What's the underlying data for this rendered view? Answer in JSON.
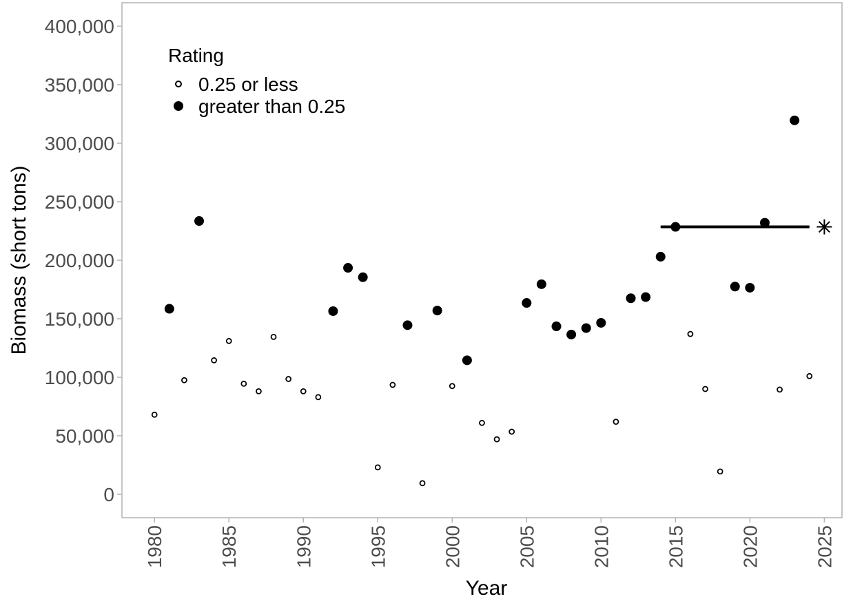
{
  "chart_data": {
    "type": "scatter",
    "xlabel": "Year",
    "ylabel": "Biomass (short tons)",
    "xlim": [
      1978,
      2026
    ],
    "ylim": [
      -20000,
      420000
    ],
    "x_ticks": [
      1980,
      1985,
      1990,
      1995,
      2000,
      2005,
      2010,
      2015,
      2020,
      2025
    ],
    "x_tick_labels": [
      "1980",
      "1985",
      "1990",
      "1995",
      "2000",
      "2005",
      "2010",
      "2015",
      "2020",
      "2025"
    ],
    "y_ticks": [
      0,
      50000,
      100000,
      150000,
      200000,
      250000,
      300000,
      350000,
      400000
    ],
    "y_tick_labels": [
      "0",
      "50,000",
      "100,000",
      "150,000",
      "200,000",
      "250,000",
      "300,000",
      "350,000",
      "400,000"
    ],
    "grid": false,
    "legend": {
      "title": "Rating",
      "placement": "top-left",
      "entries": [
        "0.25 or less",
        "greater than 0.25"
      ]
    },
    "series": [
      {
        "name": "0.25 or less",
        "marker": "hollow-circle-small",
        "x": [
          1980,
          1982,
          1984,
          1985,
          1986,
          1987,
          1988,
          1989,
          1990,
          1991,
          1995,
          1996,
          1998,
          2000,
          2002,
          2003,
          2004,
          2011,
          2016,
          2017,
          2018,
          2022,
          2024
        ],
        "y": [
          68000,
          97500,
          114500,
          131000,
          94500,
          88000,
          134500,
          98500,
          88000,
          83000,
          23000,
          93500,
          9500,
          92500,
          61000,
          47000,
          53500,
          62000,
          137000,
          90000,
          19500,
          89500,
          101000
        ]
      },
      {
        "name": "greater than 0.25",
        "marker": "filled-circle-large",
        "x": [
          1981,
          1983,
          1992,
          1993,
          1994,
          1997,
          1999,
          2001,
          2005,
          2006,
          2007,
          2008,
          2009,
          2010,
          2012,
          2013,
          2014,
          2015,
          2019,
          2020,
          2021,
          2023
        ],
        "y": [
          158500,
          233500,
          156500,
          193500,
          185500,
          144500,
          157000,
          114500,
          163500,
          179500,
          143500,
          136500,
          142000,
          146500,
          167500,
          168500,
          203000,
          228500,
          177500,
          176500,
          232000,
          319500
        ]
      }
    ],
    "annotations": [
      {
        "type": "segment",
        "x": [
          2014,
          2024
        ],
        "y": 228500,
        "color": "#000000"
      },
      {
        "type": "asterisk",
        "x": 2025,
        "y": 228500,
        "color": "#000000"
      }
    ]
  }
}
